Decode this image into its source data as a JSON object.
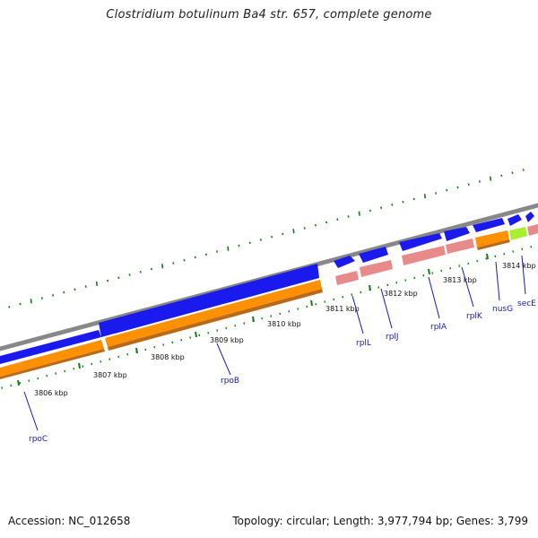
{
  "title": "Clostridium botulinum Ba4 str. 657, complete genome",
  "footer": {
    "accession": "Accession: NC_012658",
    "topology": "Topology: circular; Length: 3,977,794 bp; Genes: 3,799"
  },
  "colors": {
    "backbone": "#888888",
    "forward_gene": "#1a1aee",
    "cds_orange": "#ff9000",
    "cds_orange_dark": "#b86a1a",
    "cds_pink": "#e88a8a",
    "cds_pink_dark": "#b86a6a",
    "cds_green": "#aaee33",
    "tick": "#1a7a1a",
    "label": "#1a1aa6"
  },
  "ruler": {
    "ticks": [
      {
        "label": "3806 kbp",
        "kbp": 3806
      },
      {
        "label": "3807 kbp",
        "kbp": 3807
      },
      {
        "label": "3808 kbp",
        "kbp": 3808
      },
      {
        "label": "3809 kbp",
        "kbp": 3809
      },
      {
        "label": "3810 kbp",
        "kbp": 3810
      },
      {
        "label": "3811 kbp",
        "kbp": 3811
      },
      {
        "label": "3812 kbp",
        "kbp": 3812
      },
      {
        "label": "3813 kbp",
        "kbp": 3813
      },
      {
        "label": "3814 kbp",
        "kbp": 3814
      }
    ]
  },
  "genes": [
    {
      "name": "rpoC"
    },
    {
      "name": "rpoB"
    },
    {
      "name": "rplL"
    },
    {
      "name": "rplJ"
    },
    {
      "name": "rplA"
    },
    {
      "name": "rplK"
    },
    {
      "name": "nusG"
    },
    {
      "name": "secE"
    }
  ]
}
